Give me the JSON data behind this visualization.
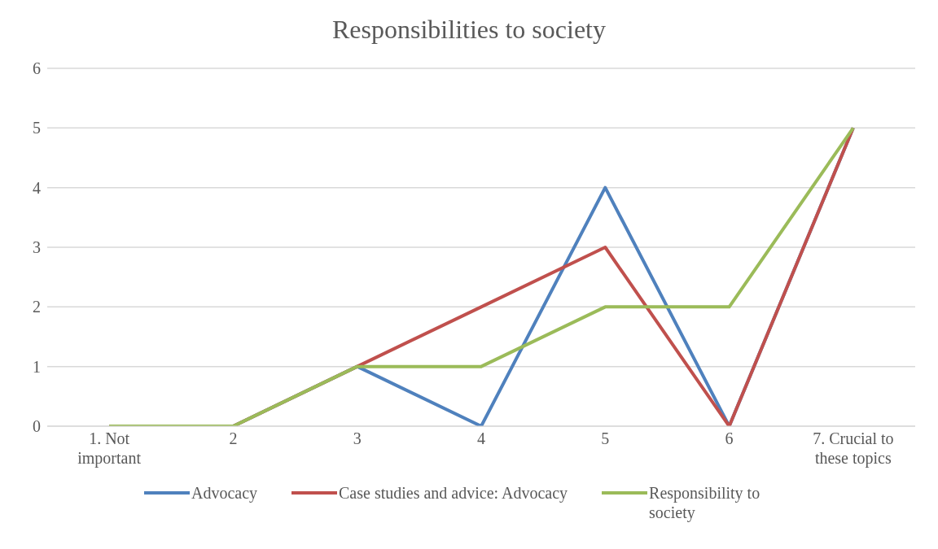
{
  "chart_data": {
    "type": "line",
    "title": "Responsibilities to society",
    "categories": [
      "1. Not important",
      "2",
      "3",
      "4",
      "5",
      "6",
      "7. Crucial to these topics"
    ],
    "series": [
      {
        "name": "Advocacy",
        "color": "#4f81bd",
        "values": [
          0,
          0,
          1,
          0,
          4,
          0,
          5
        ]
      },
      {
        "name": "Case studies and advice: Advocacy",
        "color": "#c0504d",
        "values": [
          0,
          0,
          1,
          2,
          3,
          0,
          5
        ]
      },
      {
        "name": "Responsibility to society",
        "color": "#9bbb59",
        "values": [
          0,
          0,
          1,
          1,
          2,
          2,
          5
        ]
      }
    ],
    "ylim": [
      0,
      6
    ],
    "yticks": [
      0,
      1,
      2,
      3,
      4,
      5,
      6
    ],
    "grid": "y",
    "legend": "bottom",
    "marker": "none",
    "line_style": "solid"
  }
}
